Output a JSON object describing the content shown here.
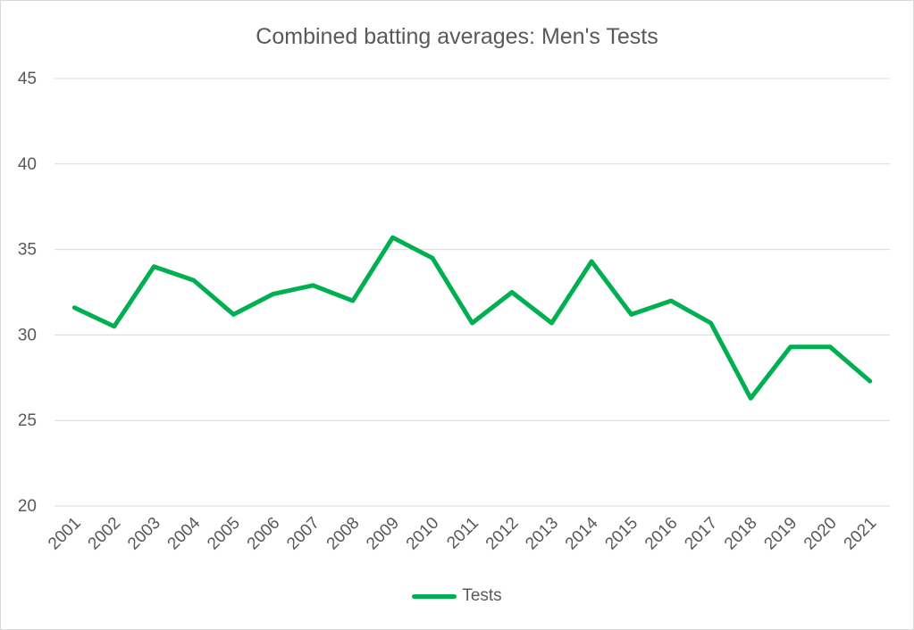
{
  "chart_data": {
    "type": "line",
    "title": "Combined batting averages: Men's Tests",
    "xlabel": "",
    "ylabel": "",
    "categories": [
      "2001",
      "2002",
      "2003",
      "2004",
      "2005",
      "2006",
      "2007",
      "2008",
      "2009",
      "2010",
      "2011",
      "2012",
      "2013",
      "2014",
      "2015",
      "2016",
      "2017",
      "2018",
      "2019",
      "2020",
      "2021"
    ],
    "series": [
      {
        "name": "Tests",
        "color": "#00b050",
        "values": [
          31.6,
          30.5,
          34.0,
          33.2,
          31.2,
          32.4,
          32.9,
          32.0,
          35.7,
          34.5,
          30.7,
          32.5,
          30.7,
          34.3,
          31.2,
          32.0,
          30.7,
          26.3,
          29.3,
          29.3,
          27.3
        ]
      }
    ],
    "ylim": [
      20,
      45
    ],
    "yticks": [
      20,
      25,
      30,
      35,
      40,
      45
    ],
    "grid": true,
    "legend_position": "bottom"
  }
}
